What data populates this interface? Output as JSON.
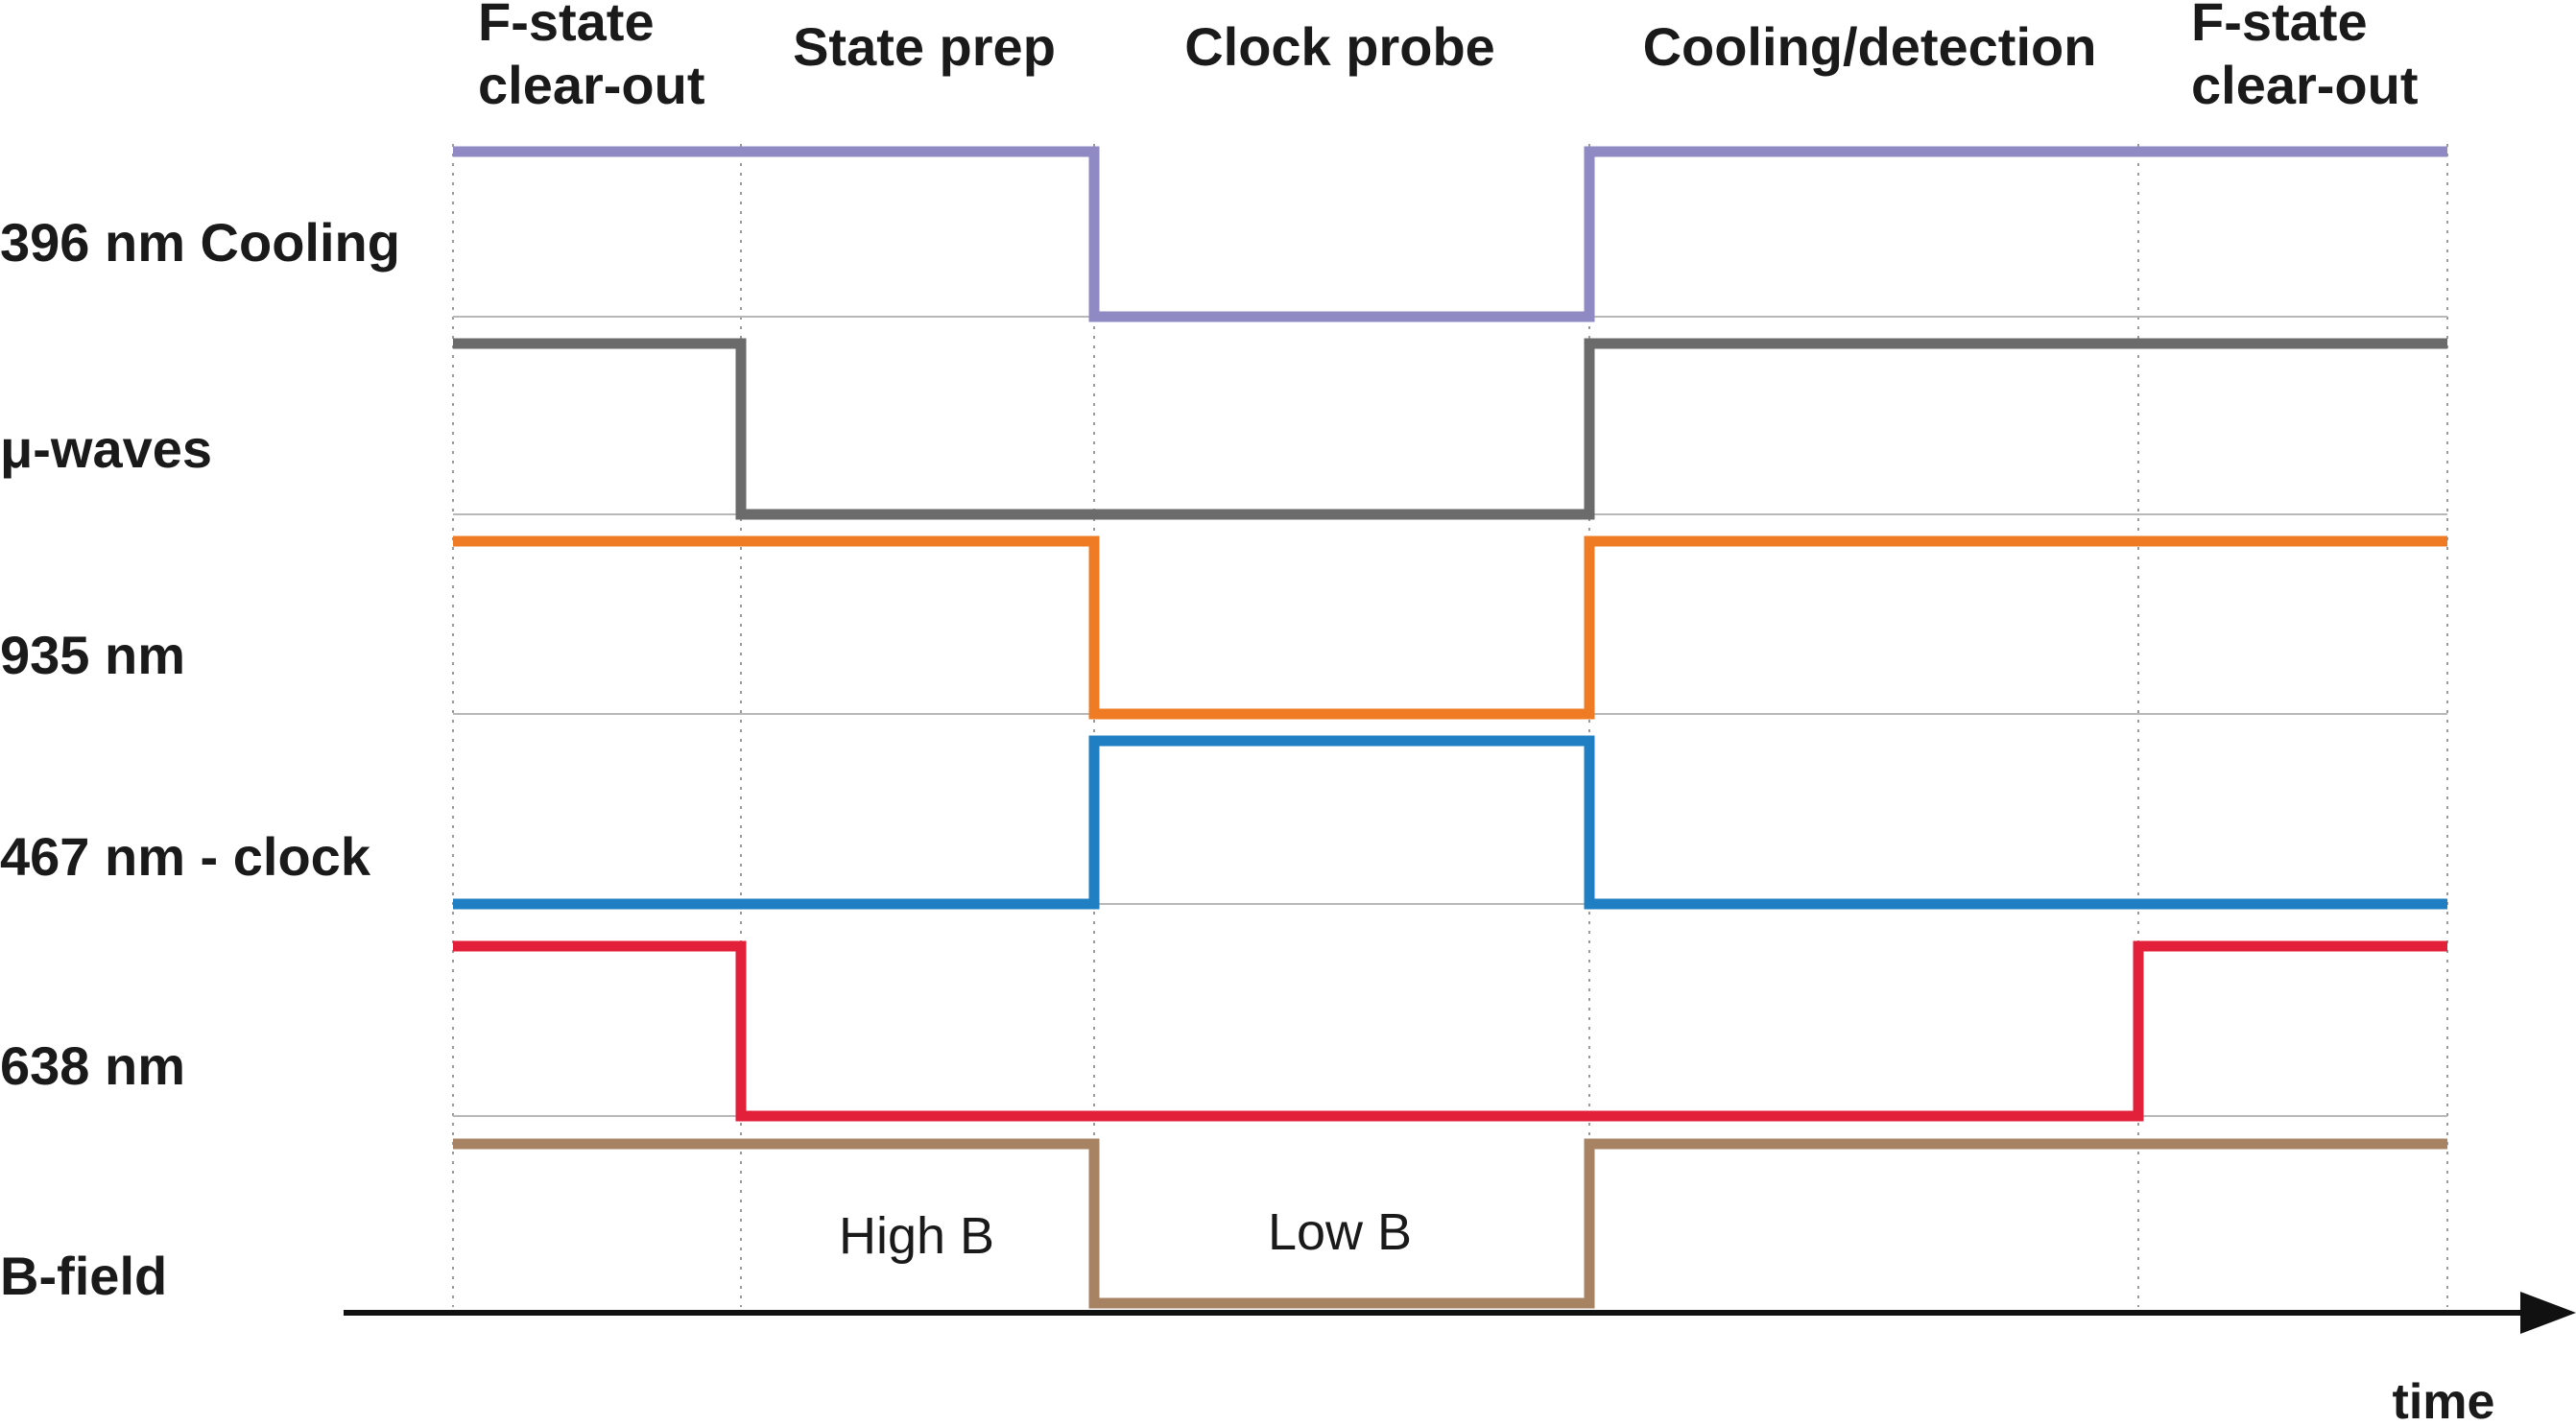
{
  "phases": [
    {
      "id": "clearout-1",
      "lines": [
        "F-state",
        "clear-out"
      ]
    },
    {
      "id": "state-prep",
      "lines": [
        "State prep"
      ]
    },
    {
      "id": "clock-probe",
      "lines": [
        "Clock probe"
      ]
    },
    {
      "id": "cooling-detection",
      "lines": [
        "Cooling/detection"
      ]
    },
    {
      "id": "clearout-2",
      "lines": [
        "F-state",
        "clear-out"
      ]
    }
  ],
  "channels": [
    {
      "id": "cooling-396",
      "label": "396 nm Cooling",
      "color": "#8f8ac4",
      "states": [
        1,
        1,
        0,
        1,
        1
      ]
    },
    {
      "id": "microwaves",
      "label": "μ-waves",
      "color": "#6b6b6b",
      "states": [
        1,
        0,
        0,
        1,
        1
      ]
    },
    {
      "id": "laser-935",
      "label": "935 nm",
      "color": "#ef7b24",
      "states": [
        1,
        1,
        0,
        1,
        1
      ]
    },
    {
      "id": "clock-467",
      "label": "467 nm - clock",
      "color": "#1f7fc2",
      "states": [
        0,
        0,
        1,
        0,
        0
      ]
    },
    {
      "id": "laser-638",
      "label": "638 nm",
      "color": "#e3203a",
      "states": [
        1,
        0,
        0,
        0,
        1
      ]
    },
    {
      "id": "b-field",
      "label": "B-field",
      "color": "#a88363",
      "states": [
        1,
        1,
        0,
        1,
        1
      ]
    }
  ],
  "annotations": [
    {
      "id": "high-b",
      "text": "High B"
    },
    {
      "id": "low-b",
      "text": "Low B"
    }
  ],
  "axis": {
    "label": "time"
  }
}
